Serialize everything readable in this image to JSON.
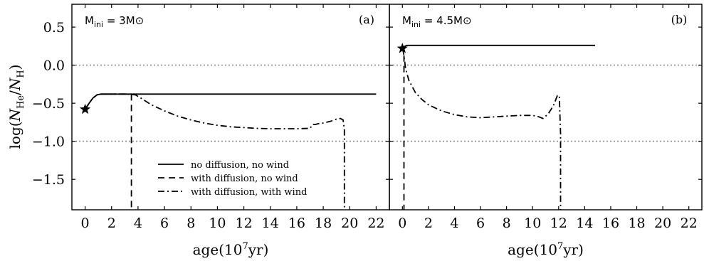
{
  "chart_data": [
    {
      "type": "line",
      "panel_label": "(a)",
      "mass_label": "M",
      "mass_sub": "ini",
      "mass_eq": " = 3M",
      "mass_sun": "⊙",
      "xlabel_main": "age(10",
      "xlabel_sup": "7",
      "xlabel_end": "yr)",
      "ylabel": "log(N_He/N_H)",
      "xlim": [
        -1,
        23
      ],
      "ylim": [
        -1.9,
        0.8
      ],
      "xticks": [
        0,
        2,
        4,
        6,
        8,
        10,
        12,
        14,
        16,
        18,
        20,
        22
      ],
      "yticks": [
        0.5,
        0.0,
        -0.5,
        -1.0,
        -1.5
      ],
      "ytick_labels": [
        "0.5",
        "0.0",
        "−0.5",
        "−1.0",
        "−1.5"
      ],
      "reference_lines_y": [
        0.0,
        -1.0
      ],
      "start_marker": {
        "x": 0,
        "y": -0.58
      },
      "legend": {
        "placement": "lower-center",
        "entries": [
          {
            "label": "no diffusion, no wind",
            "style": "solid"
          },
          {
            "label": "with diffusion, no wind",
            "style": "dashed"
          },
          {
            "label": "with diffusion, with wind",
            "style": "dashdot"
          }
        ]
      },
      "series": [
        {
          "style": "solid",
          "x": [
            0,
            0.3,
            0.6,
            0.9,
            1.2,
            2,
            5,
            10,
            15,
            22
          ],
          "y": [
            -0.58,
            -0.5,
            -0.43,
            -0.39,
            -0.38,
            -0.38,
            -0.38,
            -0.38,
            -0.38,
            -0.38
          ]
        },
        {
          "style": "dashed",
          "x": [
            0,
            0.3,
            0.6,
            0.9,
            1.2,
            2,
            3,
            3.5,
            3.5
          ],
          "y": [
            -0.58,
            -0.5,
            -0.43,
            -0.39,
            -0.38,
            -0.38,
            -0.38,
            -0.38,
            -1.9
          ]
        },
        {
          "style": "dashdot",
          "x": [
            0,
            0.3,
            0.6,
            0.9,
            1.2,
            2,
            3,
            3.8,
            4.2,
            5,
            6,
            7,
            8,
            9,
            10,
            11,
            12,
            13,
            14,
            15,
            16,
            17,
            17.2,
            17.4,
            17.6,
            18,
            18.5,
            19,
            19.3,
            19.5,
            19.6,
            19.6
          ],
          "y": [
            -0.58,
            -0.5,
            -0.43,
            -0.39,
            -0.38,
            -0.38,
            -0.38,
            -0.39,
            -0.43,
            -0.52,
            -0.6,
            -0.67,
            -0.72,
            -0.76,
            -0.79,
            -0.81,
            -0.82,
            -0.83,
            -0.835,
            -0.835,
            -0.835,
            -0.83,
            -0.78,
            -0.78,
            -0.77,
            -0.76,
            -0.74,
            -0.71,
            -0.7,
            -0.72,
            -0.85,
            -1.9
          ]
        }
      ]
    },
    {
      "type": "line",
      "panel_label": "(b)",
      "mass_label": "M",
      "mass_sub": "ini",
      "mass_eq": " = 4.5M",
      "mass_sun": "⊙",
      "xlabel_main": "age(10",
      "xlabel_sup": "7",
      "xlabel_end": "yr)",
      "xlim": [
        -1,
        23
      ],
      "ylim": [
        -1.9,
        0.8
      ],
      "xticks": [
        0,
        2,
        4,
        6,
        8,
        10,
        12,
        14,
        16,
        18,
        20,
        22
      ],
      "reference_lines_y": [
        0.0,
        -1.0
      ],
      "start_marker": {
        "x": 0,
        "y": 0.22
      },
      "series": [
        {
          "style": "solid",
          "x": [
            0,
            0.3,
            1,
            5,
            10,
            14.8
          ],
          "y": [
            0.22,
            0.26,
            0.26,
            0.26,
            0.26,
            0.26
          ]
        },
        {
          "style": "dashed",
          "x": [
            0,
            0.12,
            0.12
          ],
          "y": [
            0.22,
            0.24,
            -1.9
          ]
        },
        {
          "style": "dashdot",
          "x": [
            0,
            0.1,
            0.25,
            0.5,
            1,
            1.5,
            2,
            3,
            4,
            5,
            6,
            7,
            8,
            9,
            10,
            10.5,
            10.8,
            11.2,
            11.6,
            11.9,
            12.05,
            12.15,
            12.15
          ],
          "y": [
            0.22,
            0.15,
            -0.05,
            -0.2,
            -0.36,
            -0.45,
            -0.52,
            -0.6,
            -0.65,
            -0.68,
            -0.69,
            -0.68,
            -0.67,
            -0.66,
            -0.66,
            -0.68,
            -0.7,
            -0.64,
            -0.53,
            -0.4,
            -0.4,
            -0.9,
            -1.9
          ]
        }
      ]
    }
  ]
}
